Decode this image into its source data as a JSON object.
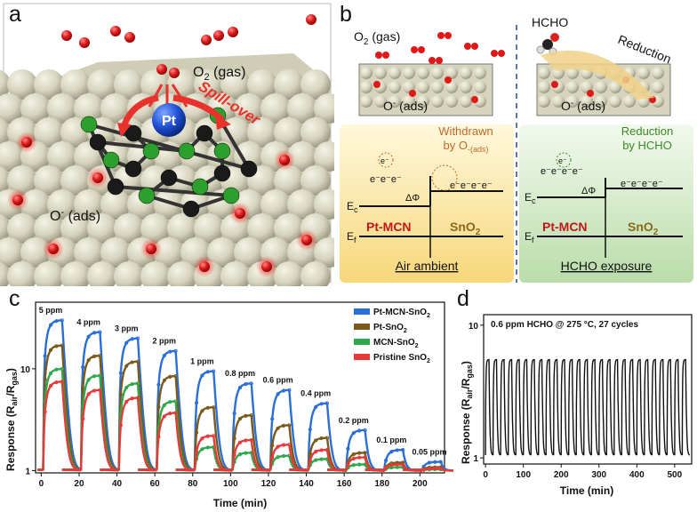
{
  "panel_a": {
    "label": "a",
    "o2_gas": "O",
    "o2_gas_sub": "2",
    "o2_gas_suffix": " (gas)",
    "pt": "Pt",
    "spillover": "Spill-over",
    "o_ads_prefix": "O",
    "o_ads_sup": "-",
    "o_ads_suffix": " (ads)",
    "colors": {
      "surface": "#d9d7c0",
      "oxygen": "#e01818",
      "carbon": "#1a1a1a",
      "nitrogen": "#2ca02c",
      "platinum": "#1f4fd6",
      "arrow": "#e8322b"
    }
  },
  "panel_b": {
    "label": "b",
    "o2_gas_prefix": "O",
    "o2_gas_sub": "2",
    "o2_gas_suffix": " (gas)",
    "hcho": "HCHO",
    "reduction_arrow": "Reduction",
    "o_ads_prefix": "O",
    "o_ads_sup": "-",
    "o_ads_suffix": " (ads)",
    "withdrawn_line1": "Withdrawn",
    "withdrawn_line2": "by O",
    "withdrawn_sub": "-(ads)",
    "reduction_by_line1": "Reduction",
    "reduction_by_line2": "by HCHO",
    "ec": "E",
    "ec_sub": "c",
    "ef": "E",
    "ef_sub": "f",
    "delta_phi": "ΔΦ",
    "electrons": "e⁻e⁻e⁻",
    "electrons_long": "e⁻e⁻e⁻e⁻",
    "e_symbol": "e⁻",
    "pt_mcn": "Pt-MCN",
    "sno2": "SnO",
    "sno2_sub": "2",
    "air_ambient": "Air ambient",
    "hcho_exposure": "HCHO exposure",
    "colors": {
      "air_bg": "#fbe7a3",
      "hcho_bg": "#dcefd4",
      "withdrawn": "#c0692a",
      "reduction": "#3a8a2a",
      "ptmcn": "#c01818",
      "sno2": "#8a6a1a"
    }
  },
  "panel_c": {
    "label": "c",
    "chart_data": {
      "type": "line",
      "xlabel": "Time (min)",
      "ylabel": "Response (R",
      "ylabel_sub1": "air",
      "ylabel_mid": "/R",
      "ylabel_sub2": "gas",
      "ylabel_end": ")",
      "yscale": "log",
      "xlim": [
        -3,
        213
      ],
      "ylim": [
        0.95,
        45
      ],
      "xticks": [
        0,
        20,
        40,
        60,
        80,
        100,
        120,
        140,
        160,
        180,
        200
      ],
      "yticks": [
        {
          "v": 1,
          "label": "1"
        },
        {
          "v": 10,
          "label": "10"
        }
      ],
      "concentrations": [
        "5 ppm",
        "4 ppm",
        "3 ppm",
        "2 ppm",
        "1 ppm",
        "0.8 ppm",
        "0.6 ppm",
        "0.4 ppm",
        "0.2 ppm",
        "0.1 ppm",
        "0.05 ppm"
      ],
      "pulse_starts": [
        1,
        21,
        41,
        61,
        81,
        101,
        121,
        141,
        161,
        181,
        201
      ],
      "legend_position": "top-right",
      "series": [
        {
          "name": "Pt-MCN-SnO",
          "name_sub": "2",
          "color": "#2a6fd6",
          "values": [
            30,
            23,
            20,
            15,
            9.5,
            7.2,
            6.2,
            4.6,
            2.5,
            1.6,
            1.22
          ]
        },
        {
          "name": "Pt-SnO",
          "name_sub": "2",
          "color": "#7a5a1a",
          "values": [
            17,
            13.5,
            11.8,
            8.5,
            4.2,
            3.5,
            2.8,
            2.1,
            1.5,
            1.2,
            1.08
          ]
        },
        {
          "name": "MCN-SnO",
          "name_sub": "2",
          "color": "#2ea84a",
          "values": [
            10,
            8.6,
            7.2,
            4.8,
            1.7,
            1.5,
            1.4,
            1.3,
            1.15,
            1.08,
            1.03
          ]
        },
        {
          "name": "Pristine SnO",
          "name_sub": "2",
          "color": "#e63a3a",
          "values": [
            7.5,
            6.2,
            5.2,
            3.7,
            2.2,
            2.0,
            1.8,
            1.6,
            1.35,
            1.15,
            1.05
          ]
        }
      ]
    }
  },
  "panel_d": {
    "label": "d",
    "chart_data": {
      "type": "line",
      "annotation": "0.6 ppm HCHO @ 275 °C, 27 cycles",
      "xlabel": "Time (min)",
      "ylabel": "Response (R",
      "ylabel_sub1": "air",
      "ylabel_mid": "/R",
      "ylabel_sub2": "gas",
      "ylabel_end": ")",
      "yscale": "log",
      "xlim": [
        -5,
        545
      ],
      "ylim": [
        0.9,
        12
      ],
      "xticks": [
        0,
        100,
        200,
        300,
        400,
        500
      ],
      "yticks": [
        {
          "v": 1,
          "label": "1"
        },
        {
          "v": 10,
          "label": "10"
        }
      ],
      "cycles": 27,
      "period_min": 20,
      "peak_value": 5.5,
      "base_value": 1.05,
      "series": [
        {
          "name": "",
          "color": "#111111",
          "values": []
        }
      ]
    }
  }
}
